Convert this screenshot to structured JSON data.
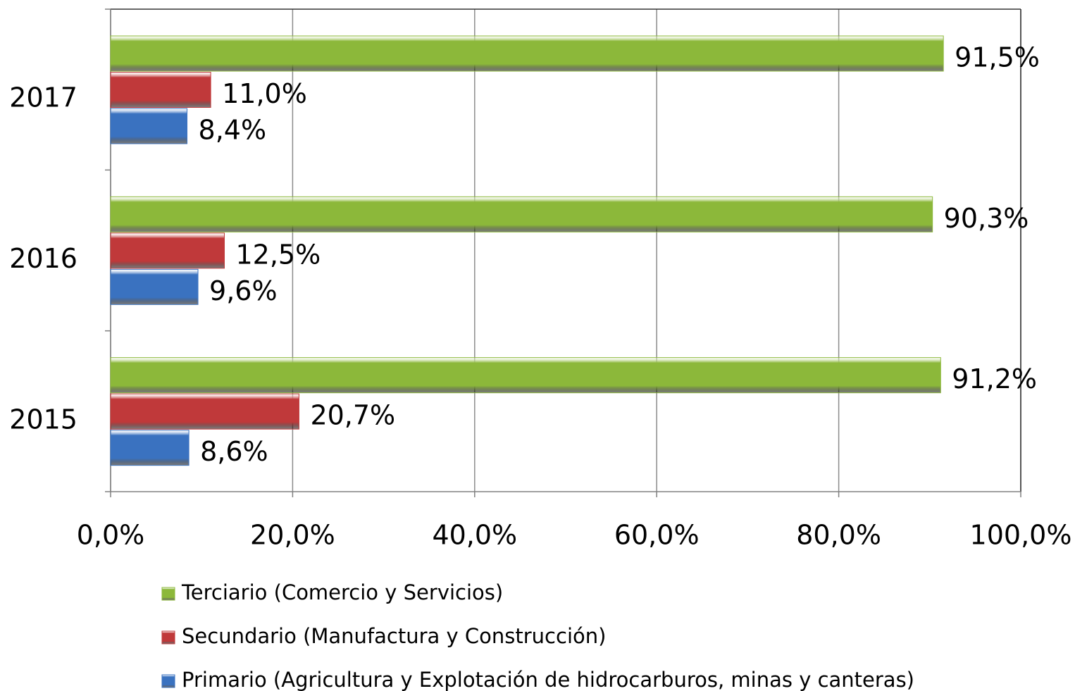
{
  "chart_data": {
    "type": "barh",
    "categories": [
      "2015",
      "2016",
      "2017"
    ],
    "series": [
      {
        "name": "Terciario (Comercio y Servicios)",
        "color": "#8cb83a",
        "values": [
          91.2,
          90.3,
          91.5
        ],
        "value_labels": [
          "91,2%",
          "90,3%",
          "91,5%"
        ]
      },
      {
        "name": "Secundario (Manufactura y Construcción)",
        "color": "#c0393a",
        "values": [
          20.7,
          12.5,
          11.0
        ],
        "value_labels": [
          "20,7%",
          "12,5%",
          "11,0%"
        ]
      },
      {
        "name": "Primario (Agricultura y Explotación de hidrocarburos, minas y canteras)",
        "color": "#3a72c0",
        "values": [
          8.6,
          9.6,
          8.4
        ],
        "value_labels": [
          "8,6%",
          "9,6%",
          "8,4%"
        ]
      }
    ],
    "xlim": [
      0,
      100
    ],
    "xticks": [
      {
        "value": 0,
        "label": "0,0%"
      },
      {
        "value": 20,
        "label": "20,0%"
      },
      {
        "value": 40,
        "label": "40,0%"
      },
      {
        "value": 60,
        "label": "60,0%"
      },
      {
        "value": 80,
        "label": "80,0%"
      },
      {
        "value": 100,
        "label": "100,0%"
      }
    ],
    "grid": true
  }
}
